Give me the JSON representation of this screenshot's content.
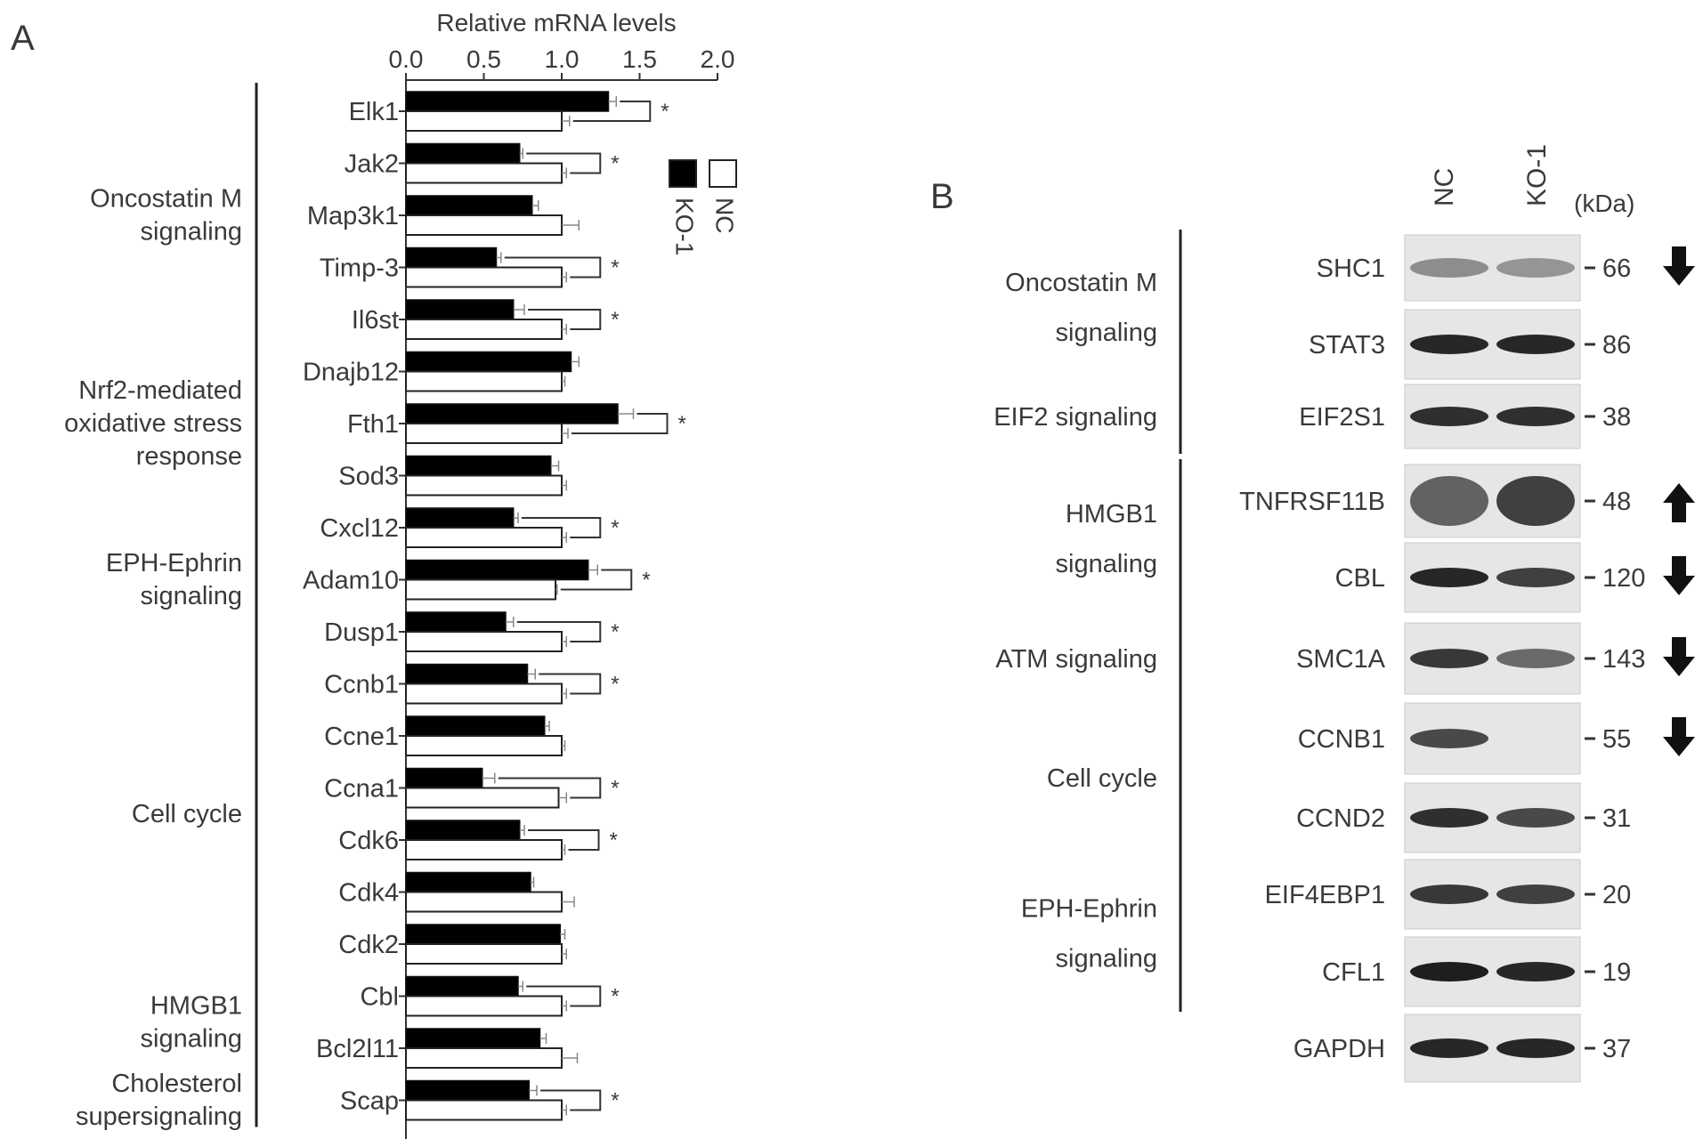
{
  "panel_a": {
    "label": "A",
    "chart_data": {
      "type": "bar",
      "orientation": "horizontal",
      "xlabel": "Relative mRNA levels",
      "xlim": [
        0,
        2.0
      ],
      "xticks": [
        0.0,
        0.5,
        1.0,
        1.5,
        2.0
      ],
      "xtick_labels": [
        "0.0",
        "0.5",
        "1.0",
        "1.5",
        "2.0"
      ],
      "legend_position": "top-right",
      "categories": [
        "Elk1",
        "Jak2",
        "Map3k1",
        "Timp-3",
        "Il6st",
        "Dnajb12",
        "Fth1",
        "Sod3",
        "Cxcl12",
        "Adam10",
        "Dusp1",
        "Ccnb1",
        "Ccne1",
        "Ccna1",
        "Cdk6",
        "Cdk4",
        "Cdk2",
        "Cbl",
        "Bcl2l11",
        "Scap"
      ],
      "series": [
        {
          "name": "KO-1",
          "color": "#000000",
          "values": [
            1.3,
            0.73,
            0.81,
            0.58,
            0.69,
            1.06,
            1.36,
            0.93,
            0.69,
            1.17,
            0.64,
            0.78,
            0.89,
            0.49,
            0.73,
            0.8,
            0.99,
            0.72,
            0.86,
            0.79
          ],
          "errors": [
            0.05,
            0.02,
            0.04,
            0.03,
            0.07,
            0.05,
            0.1,
            0.05,
            0.03,
            0.06,
            0.05,
            0.05,
            0.03,
            0.08,
            0.03,
            0.02,
            0.03,
            0.03,
            0.04,
            0.05
          ]
        },
        {
          "name": "NC",
          "color": "#ffffff",
          "values": [
            1.0,
            1.0,
            1.0,
            1.0,
            1.0,
            1.0,
            1.0,
            1.0,
            1.0,
            0.96,
            1.0,
            1.0,
            1.0,
            0.98,
            1.0,
            1.0,
            1.0,
            1.0,
            1.0,
            1.0
          ],
          "errors": [
            0.05,
            0.03,
            0.11,
            0.03,
            0.03,
            0.02,
            0.04,
            0.03,
            0.03,
            0.01,
            0.03,
            0.03,
            0.02,
            0.05,
            0.02,
            0.08,
            0.03,
            0.03,
            0.1,
            0.03
          ]
        }
      ],
      "significant": [
        true,
        true,
        false,
        true,
        true,
        false,
        true,
        false,
        true,
        true,
        true,
        true,
        false,
        true,
        true,
        false,
        false,
        true,
        false,
        true
      ],
      "significance_mark": "*",
      "groups": [
        {
          "lines": [
            "Oncostatin M",
            "signaling"
          ],
          "start": 0,
          "end": 4
        },
        {
          "lines": [
            "Nrf2-mediated",
            "oxidative stress",
            "response"
          ],
          "start": 5,
          "end": 7
        },
        {
          "lines": [
            "EPH-Ephrin",
            "signaling"
          ],
          "start": 8,
          "end": 10
        },
        {
          "lines": [
            "Cell cycle"
          ],
          "start": 11,
          "end": 16
        },
        {
          "lines": [
            "HMGB1",
            "signaling"
          ],
          "start": 17,
          "end": 18
        },
        {
          "lines": [
            "Cholesterol",
            "supersignaling"
          ],
          "start": 19,
          "end": 19
        }
      ]
    }
  },
  "panel_b": {
    "label": "B",
    "lanes": [
      "NC",
      "KO-1"
    ],
    "kda_label": "(kDa)",
    "blots": [
      {
        "protein": "SHC1",
        "kda": "66",
        "arrow": "down",
        "intensity": [
          0.35,
          0.3
        ]
      },
      {
        "protein": "STAT3",
        "kda": "86",
        "arrow": "",
        "intensity": [
          0.95,
          0.95
        ]
      },
      {
        "protein": "EIF2S1",
        "kda": "38",
        "arrow": "",
        "intensity": [
          0.9,
          0.9
        ]
      },
      {
        "protein": "TNFRSF11B",
        "kda": "48",
        "arrow": "up",
        "intensity": [
          0.6,
          0.8
        ]
      },
      {
        "protein": "CBL",
        "kda": "120",
        "arrow": "down",
        "intensity": [
          0.95,
          0.8
        ]
      },
      {
        "protein": "SMC1A",
        "kda": "143",
        "arrow": "down",
        "intensity": [
          0.85,
          0.55
        ]
      },
      {
        "protein": "CCNB1",
        "kda": "55",
        "arrow": "down",
        "intensity": [
          0.75,
          0.0
        ]
      },
      {
        "protein": "CCND2",
        "kda": "31",
        "arrow": "",
        "intensity": [
          0.9,
          0.75
        ]
      },
      {
        "protein": "EIF4EBP1",
        "kda": "20",
        "arrow": "",
        "intensity": [
          0.85,
          0.8
        ]
      },
      {
        "protein": "CFL1",
        "kda": "19",
        "arrow": "",
        "intensity": [
          1.0,
          0.95
        ]
      },
      {
        "protein": "GAPDH",
        "kda": "37",
        "arrow": "",
        "intensity": [
          0.95,
          0.95
        ]
      }
    ],
    "groups": [
      {
        "lines": [
          "Oncostatin M",
          "signaling"
        ],
        "start": 0,
        "end": 1
      },
      {
        "lines": [
          "EIF2 signaling"
        ],
        "start": 2,
        "end": 2
      },
      {
        "lines": [
          "HMGB1",
          "signaling"
        ],
        "start": 3,
        "end": 4
      },
      {
        "lines": [
          "ATM signaling"
        ],
        "start": 5,
        "end": 5
      },
      {
        "lines": [
          "Cell cycle"
        ],
        "start": 6,
        "end": 7
      },
      {
        "lines": [
          "EPH-Ephrin",
          "signaling"
        ],
        "start": 8,
        "end": 9
      }
    ]
  }
}
